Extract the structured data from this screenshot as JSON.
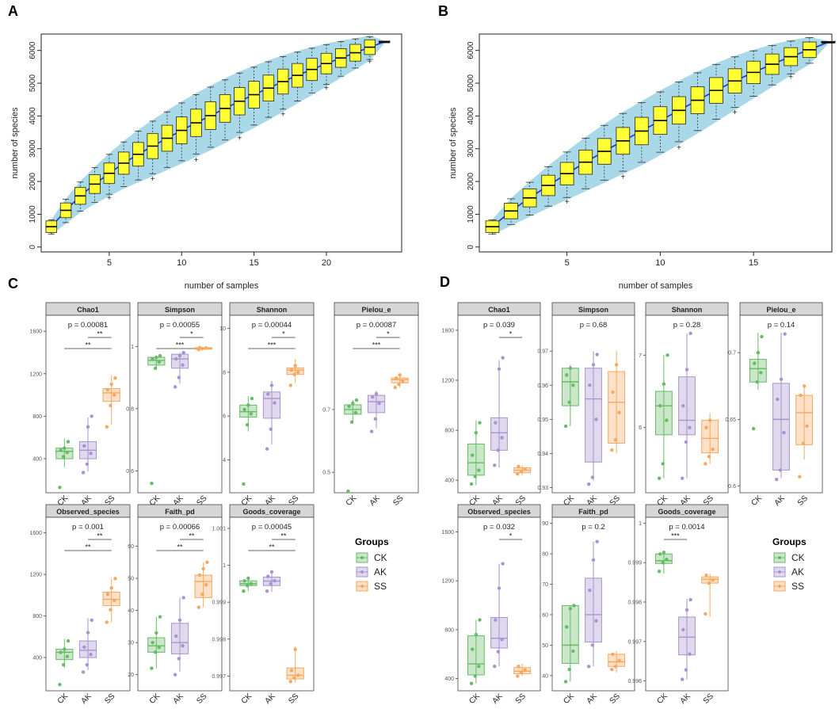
{
  "panel_letters": [
    "A",
    "B",
    "C",
    "D"
  ],
  "colors": {
    "band": "#a9d8e8",
    "box": "#ffff33",
    "meanline": "#2233cc",
    "strip": "#d6d6d6",
    "CK": "#66bb66",
    "AK": "#a793cf",
    "SS": "#f5a860"
  },
  "rarefaction_A": {
    "ylabel": "number of species",
    "xlabel": "number of samples",
    "xlim": [
      0.3,
      25.2
    ],
    "ylim": [
      -150,
      6500
    ],
    "xticks": [
      5,
      10,
      15,
      20
    ],
    "yticks": [
      0,
      1000,
      2000,
      3000,
      4000,
      5000,
      6000
    ],
    "medians": [
      620,
      1120,
      1560,
      1920,
      2250,
      2560,
      2830,
      3080,
      3320,
      3560,
      3790,
      4010,
      4230,
      4450,
      4650,
      4850,
      5050,
      5240,
      5420,
      5600,
      5770,
      5930,
      6100,
      6260
    ]
  },
  "rarefaction_B": {
    "ylabel": "number of species",
    "xlabel": "number of samples",
    "xlim": [
      0.3,
      19.2
    ],
    "ylim": [
      -150,
      6500
    ],
    "xticks": [
      5,
      10,
      15
    ],
    "yticks": [
      0,
      1000,
      2000,
      3000,
      4000,
      5000,
      6000
    ],
    "medians": [
      620,
      1100,
      1500,
      1880,
      2240,
      2590,
      2920,
      3240,
      3540,
      3860,
      4170,
      4480,
      4780,
      5070,
      5330,
      5580,
      5810,
      6020,
      6250
    ]
  },
  "legend": {
    "title": "Groups",
    "items": [
      "CK",
      "AK",
      "SS"
    ]
  },
  "group_labels": [
    "CK",
    "AK",
    "SS"
  ],
  "chart_data": [
    {
      "type": "box",
      "panel": "C",
      "facets": [
        {
          "name": "Chao1",
          "p": "p = 0.00081",
          "ylim": [
            80,
            1750
          ],
          "yticks": [
            400,
            800,
            1200,
            1600
          ],
          "boxes": [
            [
              320,
              400,
              470,
              500,
              590
            ],
            [
              280,
              400,
              480,
              560,
              790
            ],
            [
              720,
              940,
              1020,
              1060,
              1180
            ]
          ],
          "points": [
            [
              130,
              420,
              460,
              480,
              500,
              560
            ],
            [
              270,
              350,
              450,
              520,
              700,
              800
            ],
            [
              700,
              900,
              1000,
              1050,
              1100,
              1160
            ]
          ],
          "sig": [
            {
              "g": [
                1,
                2
              ],
              "label": "**"
            },
            {
              "g": [
                0,
                2
              ],
              "label": "**"
            }
          ]
        },
        {
          "name": "Simpson",
          "p": "p = 0.00055",
          "ylim": [
            0.53,
            1.1
          ],
          "yticks": [
            0.6,
            0.8,
            1.0
          ],
          "boxes": [
            [
              0.93,
              0.94,
              0.955,
              0.965,
              0.97
            ],
            [
              0.88,
              0.93,
              0.96,
              0.975,
              0.98
            ],
            [
              0.99,
              0.992,
              0.994,
              0.996,
              0.997
            ]
          ],
          "points": [
            [
              0.56,
              0.93,
              0.95,
              0.96,
              0.965,
              0.97
            ],
            [
              0.87,
              0.9,
              0.94,
              0.96,
              0.97,
              0.98
            ],
            [
              0.99,
              0.993,
              0.995,
              0.996
            ]
          ],
          "sig": [
            {
              "g": [
                1,
                2
              ],
              "label": "*"
            },
            {
              "g": [
                0,
                2
              ],
              "label": "***"
            }
          ]
        },
        {
          "name": "Shannon",
          "p": "p = 0.00044",
          "ylim": [
            2.5,
            10.6
          ],
          "yticks": [
            4,
            6,
            8,
            10
          ],
          "boxes": [
            [
              5.3,
              5.95,
              6.2,
              6.5,
              6.9
            ],
            [
              4.7,
              5.9,
              6.8,
              7.1,
              7.6
            ],
            [
              7.5,
              7.9,
              8.1,
              8.2,
              8.6
            ]
          ],
          "points": [
            [
              2.9,
              5.6,
              6.1,
              6.3,
              6.5,
              6.8
            ],
            [
              4.5,
              5.4,
              6.6,
              7.0,
              7.4
            ],
            [
              7.4,
              7.9,
              8.0,
              8.1,
              8.3
            ]
          ],
          "sig": [
            {
              "g": [
                1,
                2
              ],
              "label": "*"
            },
            {
              "g": [
                0,
                2
              ],
              "label": "***"
            }
          ]
        },
        {
          "name": "Pielou_e",
          "p": "p = 0.00087",
          "ylim": [
            0.435,
            1.0
          ],
          "yticks": [
            0.5,
            0.7
          ],
          "boxes": [
            [
              0.66,
              0.685,
              0.7,
              0.715,
              0.73
            ],
            [
              0.64,
              0.69,
              0.725,
              0.745,
              0.76
            ],
            [
              0.77,
              0.785,
              0.795,
              0.8,
              0.81
            ]
          ],
          "points": [
            [
              0.44,
              0.66,
              0.69,
              0.71,
              0.72,
              0.73
            ],
            [
              0.63,
              0.67,
              0.72,
              0.74,
              0.75
            ],
            [
              0.77,
              0.78,
              0.79,
              0.8,
              0.81
            ]
          ],
          "sig": [
            {
              "g": [
                1,
                2
              ],
              "label": "*"
            },
            {
              "g": [
                0,
                2
              ],
              "label": "***"
            }
          ]
        },
        {
          "name": "Observed_species",
          "p": "p = 0.001",
          "ylim": [
            80,
            1750
          ],
          "yticks": [
            400,
            800,
            1200,
            1600
          ],
          "boxes": [
            [
              300,
              380,
              450,
              480,
              580
            ],
            [
              280,
              400,
              470,
              560,
              780
            ],
            [
              740,
              900,
              960,
              1030,
              1160
            ]
          ],
          "points": [
            [
              140,
              330,
              410,
              450,
              480,
              560
            ],
            [
              260,
              330,
              430,
              500,
              640,
              760
            ],
            [
              740,
              860,
              950,
              1010,
              1070,
              1160
            ]
          ],
          "sig": [
            {
              "g": [
                1,
                2
              ],
              "label": "**"
            },
            {
              "g": [
                0,
                2
              ],
              "label": "**"
            }
          ]
        },
        {
          "name": "Faith_pd",
          "p": "p = 0.00066",
          "ylim": [
            15,
            69
          ],
          "yticks": [
            20,
            30,
            40,
            50,
            60
          ],
          "boxes": [
            [
              22,
              27,
              29,
              31.5,
              38
            ],
            [
              21,
              26.5,
              30,
              36,
              44
            ],
            [
              41,
              44,
              49,
              51,
              55
            ]
          ],
          "points": [
            [
              22,
              27,
              28.5,
              30,
              33,
              38
            ],
            [
              20,
              25,
              29,
              32,
              37,
              44
            ],
            [
              41,
              45,
              48,
              51,
              53,
              55
            ]
          ],
          "sig": [
            {
              "g": [
                1,
                2
              ],
              "label": "**"
            },
            {
              "g": [
                0,
                2
              ],
              "label": "**"
            }
          ]
        },
        {
          "name": "Goods_coverage",
          "p": "p = 0.00045",
          "ylim": [
            0.9966,
            1.0013
          ],
          "yticks": [
            0.997,
            0.998,
            0.999,
            1.0,
            1.001
          ],
          "boxes": [
            [
              0.9993,
              0.99945,
              0.9995,
              0.99958,
              0.99968
            ],
            [
              0.99928,
              0.99945,
              0.99957,
              0.99968,
              0.99985
            ],
            [
              0.99682,
              0.99692,
              0.99702,
              0.99722,
              0.9978
            ]
          ],
          "points": [
            [
              0.9993,
              0.99945,
              0.9995,
              0.99958,
              0.99965
            ],
            [
              0.9993,
              0.9995,
              0.99958,
              0.9997,
              0.99982
            ],
            [
              0.99685,
              0.99695,
              0.99702,
              0.99715,
              0.99772
            ]
          ],
          "sig": [
            {
              "g": [
                1,
                2
              ],
              "label": "**"
            },
            {
              "g": [
                0,
                2
              ],
              "label": "**"
            }
          ]
        }
      ]
    },
    {
      "type": "box",
      "panel": "D",
      "facets": [
        {
          "name": "Chao1",
          "p": "p = 0.039",
          "ylim": [
            300,
            1720
          ],
          "yticks": [
            400,
            800,
            1200,
            1600
          ],
          "boxes": [
            [
              360,
              440,
              540,
              690,
              880
            ],
            [
              500,
              640,
              780,
              900,
              1360
            ],
            [
              440,
              460,
              480,
              500,
              520
            ]
          ],
          "points": [
            [
              370,
              430,
              480,
              600,
              780,
              860
            ],
            [
              520,
              640,
              740,
              860,
              1290,
              1380
            ],
            [
              450,
              470,
              490,
              510
            ]
          ],
          "sig": [
            {
              "g": [
                1,
                2
              ],
              "label": "*"
            }
          ]
        },
        {
          "name": "Simpson",
          "p": "p = 0.68",
          "ylim": [
            0.9285,
            0.9805
          ],
          "yticks": [
            0.93,
            0.94,
            0.95,
            0.96,
            0.97
          ],
          "boxes": [
            [
              0.948,
              0.954,
              0.961,
              0.965,
              0.966
            ],
            [
              0.932,
              0.9375,
              0.956,
              0.965,
              0.97
            ],
            [
              0.94,
              0.943,
              0.955,
              0.964,
              0.97
            ]
          ],
          "points": [
            [
              0.948,
              0.955,
              0.96,
              0.963,
              0.965
            ],
            [
              0.931,
              0.933,
              0.95,
              0.96,
              0.966,
              0.969
            ],
            [
              0.941,
              0.944,
              0.952,
              0.958,
              0.966
            ]
          ],
          "sig": []
        },
        {
          "name": "Shannon",
          "p": "p = 0.28",
          "ylim": [
            5.1,
            7.55
          ],
          "yticks": [
            6,
            7
          ],
          "boxes": [
            [
              5.3,
              5.9,
              6.3,
              6.5,
              7.0
            ],
            [
              5.3,
              5.9,
              6.1,
              6.7,
              7.3
            ],
            [
              5.5,
              5.65,
              5.85,
              6.1,
              6.2
            ]
          ],
          "points": [
            [
              5.3,
              5.5,
              6.1,
              6.3,
              6.6,
              7.0
            ],
            [
              5.3,
              5.8,
              6.0,
              6.3,
              6.8,
              7.3
            ],
            [
              5.5,
              5.6,
              5.7,
              6.0,
              6.1
            ]
          ],
          "sig": []
        },
        {
          "name": "Pielou_e",
          "p": "p = 0.14",
          "ylim": [
            0.595,
            0.728
          ],
          "yticks": [
            0.6,
            0.65,
            0.7
          ],
          "boxes": [
            [
              0.672,
              0.678,
              0.688,
              0.695,
              0.715
            ],
            [
              0.606,
              0.612,
              0.65,
              0.677,
              0.715
            ],
            [
              0.62,
              0.631,
              0.655,
              0.668,
              0.676
            ]
          ],
          "points": [
            [
              0.643,
              0.678,
              0.685,
              0.692,
              0.7,
              0.712
            ],
            [
              0.605,
              0.612,
              0.64,
              0.665,
              0.68,
              0.714
            ],
            [
              0.607,
              0.632,
              0.645,
              0.668,
              0.675
            ]
          ],
          "sig": []
        },
        {
          "name": "Observed_species",
          "p": "p = 0.032",
          "ylim": [
            300,
            1720
          ],
          "yticks": [
            400,
            800,
            1200,
            1600
          ],
          "boxes": [
            [
              360,
              430,
              520,
              750,
              880
            ],
            [
              500,
              650,
              730,
              900,
              1340
            ],
            [
              420,
              440,
              460,
              490,
              520
            ]
          ],
          "points": [
            [
              360,
              420,
              500,
              640,
              760,
              880
            ],
            [
              500,
              620,
              720,
              880,
              1140,
              1340
            ],
            [
              420,
              450,
              470,
              500
            ]
          ],
          "sig": [
            {
              "g": [
                1,
                2
              ],
              "label": "*"
            }
          ]
        },
        {
          "name": "Faith_pd",
          "p": "p = 0.2",
          "ylim": [
            35,
            92
          ],
          "yticks": [
            40,
            50,
            60,
            70,
            80,
            90
          ],
          "boxes": [
            [
              38,
              44,
              50,
              63,
              63
            ],
            [
              43,
              51,
              60,
              72,
              84
            ],
            [
              41,
              43,
              44.5,
              47,
              48
            ]
          ],
          "points": [
            [
              38,
              42,
              48,
              56,
              62,
              63
            ],
            [
              43,
              50,
              58,
              68,
              78,
              84
            ],
            [
              42,
              43,
              45,
              47
            ]
          ],
          "sig": []
        },
        {
          "name": "Goods_coverage",
          "p": "p = 0.0014",
          "ylim": [
            0.99575,
            1.00015
          ],
          "yticks": [
            0.996,
            0.997,
            0.998,
            0.999,
            1.0
          ],
          "boxes": [
            [
              0.99872,
              0.99898,
              0.99905,
              0.99922,
              0.99928
            ],
            [
              0.99604,
              0.99666,
              0.99711,
              0.99762,
              0.99808
            ],
            [
              0.99762,
              0.99848,
              0.99858,
              0.99864,
              0.99872
            ]
          ],
          "points": [
            [
              0.99878,
              0.999,
              0.99908,
              0.99922,
              0.99926
            ],
            [
              0.99604,
              0.99628,
              0.99668,
              0.9973,
              0.9978,
              0.99806
            ],
            [
              0.9977,
              0.99848,
              0.99856,
              0.99868
            ]
          ],
          "sig": [
            {
              "g": [
                0,
                1
              ],
              "label": "***"
            }
          ]
        }
      ]
    }
  ]
}
